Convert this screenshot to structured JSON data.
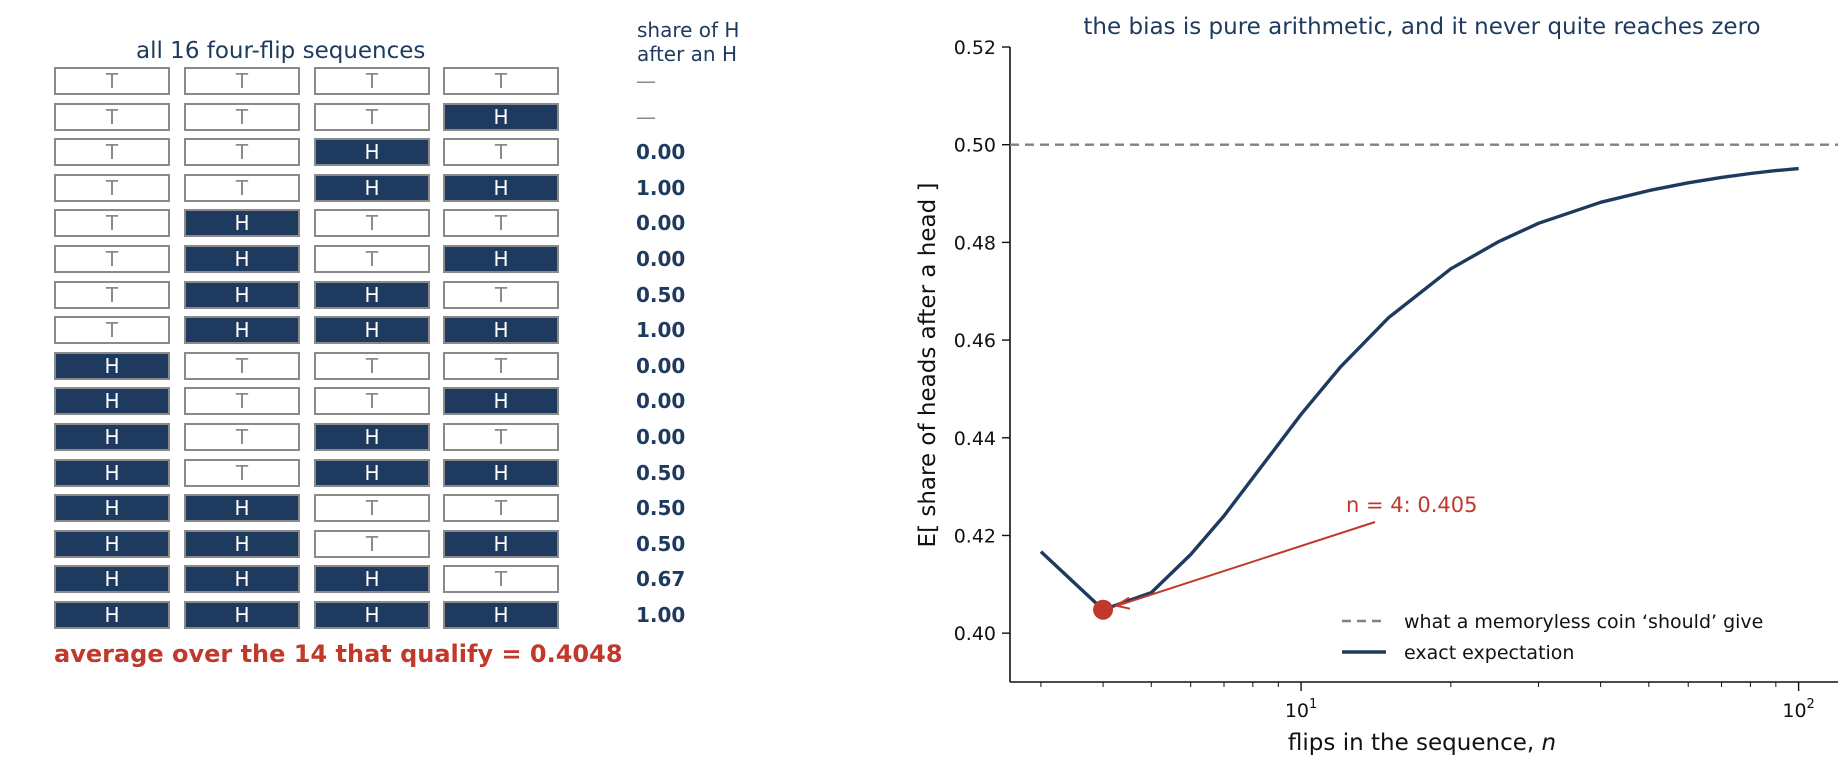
{
  "left_panel": {
    "title": "all 16 four-flip sequences",
    "share_header_line1": "share of H",
    "share_header_line2": "after an H",
    "rows": [
      {
        "flips": [
          "T",
          "T",
          "T",
          "T"
        ],
        "share": "—"
      },
      {
        "flips": [
          "T",
          "T",
          "T",
          "H"
        ],
        "share": "—"
      },
      {
        "flips": [
          "T",
          "T",
          "H",
          "T"
        ],
        "share": "0.00"
      },
      {
        "flips": [
          "T",
          "T",
          "H",
          "H"
        ],
        "share": "1.00"
      },
      {
        "flips": [
          "T",
          "H",
          "T",
          "T"
        ],
        "share": "0.00"
      },
      {
        "flips": [
          "T",
          "H",
          "T",
          "H"
        ],
        "share": "0.00"
      },
      {
        "flips": [
          "T",
          "H",
          "H",
          "T"
        ],
        "share": "0.50"
      },
      {
        "flips": [
          "T",
          "H",
          "H",
          "H"
        ],
        "share": "1.00"
      },
      {
        "flips": [
          "H",
          "T",
          "T",
          "T"
        ],
        "share": "0.00"
      },
      {
        "flips": [
          "H",
          "T",
          "T",
          "H"
        ],
        "share": "0.00"
      },
      {
        "flips": [
          "H",
          "T",
          "H",
          "T"
        ],
        "share": "0.00"
      },
      {
        "flips": [
          "H",
          "T",
          "H",
          "H"
        ],
        "share": "0.50"
      },
      {
        "flips": [
          "H",
          "H",
          "T",
          "T"
        ],
        "share": "0.50"
      },
      {
        "flips": [
          "H",
          "H",
          "T",
          "H"
        ],
        "share": "0.50"
      },
      {
        "flips": [
          "H",
          "H",
          "H",
          "T"
        ],
        "share": "0.67"
      },
      {
        "flips": [
          "H",
          "H",
          "H",
          "H"
        ],
        "share": "1.00"
      }
    ],
    "average_label": "average over the 14 that qualify  =  0.4048"
  },
  "colors": {
    "navy": "#1e3a5f",
    "red": "#c0392b",
    "gray": "#8a8a8a",
    "dashed": "#808080"
  },
  "chart_data": {
    "type": "line",
    "title": "the bias is pure arithmetic, and it never quite reaches zero",
    "xlabel": "flips in the sequence, ",
    "xlabel_var": "n",
    "ylabel": "E[ share of heads after a head ]",
    "xscale": "log",
    "xlim": [
      2.6,
      120
    ],
    "ylim": [
      0.39,
      0.52
    ],
    "yticks": [
      "0.40",
      "0.42",
      "0.44",
      "0.46",
      "0.48",
      "0.50",
      "0.52"
    ],
    "xtick_major": [
      {
        "value": 10,
        "base": "10",
        "exp": "1"
      },
      {
        "value": 100,
        "base": "10",
        "exp": "2"
      }
    ],
    "reference_line": {
      "y": 0.5,
      "label": "what a memoryless coin ‘should’ give"
    },
    "series": [
      {
        "name": "exact expectation",
        "x": [
          3,
          4,
          5,
          6,
          7,
          8,
          10,
          12,
          15,
          20,
          25,
          30,
          40,
          50,
          60,
          70,
          80,
          90,
          100
        ],
        "y": [
          0.4167,
          0.4048,
          0.4083,
          0.4161,
          0.424,
          0.4318,
          0.4448,
          0.4545,
          0.4646,
          0.4746,
          0.4802,
          0.4839,
          0.4882,
          0.4906,
          0.4922,
          0.4933,
          0.4941,
          0.4947,
          0.4951
        ]
      }
    ],
    "highlight_point": {
      "x": 4,
      "y": 0.4048
    },
    "annotation": "n = 4:  0.405",
    "legend_placement": "lower-right",
    "grid": false
  }
}
